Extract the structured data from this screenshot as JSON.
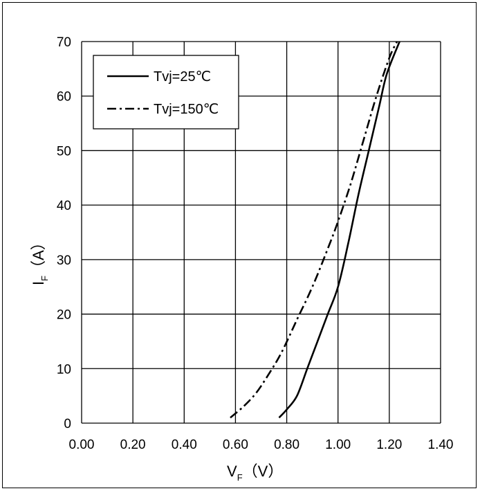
{
  "chart_data": {
    "type": "line",
    "title": "",
    "xlabel": {
      "main": "V",
      "sub": "F",
      "unit": "（V）"
    },
    "ylabel": {
      "main": "I",
      "sub": "F",
      "unit": "（A）"
    },
    "xlim": [
      0.0,
      1.4
    ],
    "ylim": [
      0,
      70
    ],
    "xticks": [
      "0.00",
      "0.20",
      "0.40",
      "0.60",
      "0.80",
      "1.00",
      "1.20",
      "1.40"
    ],
    "yticks": [
      "0",
      "10",
      "20",
      "30",
      "40",
      "50",
      "60",
      "70"
    ],
    "grid": true,
    "legend": {
      "position": "top-left"
    },
    "series": [
      {
        "name": "Tvj=25℃",
        "style": "solid",
        "points": [
          [
            0.77,
            1
          ],
          [
            0.8,
            2.5
          ],
          [
            0.84,
            5
          ],
          [
            0.88,
            10
          ],
          [
            0.92,
            15
          ],
          [
            0.96,
            20
          ],
          [
            1.0,
            25
          ],
          [
            1.04,
            33
          ],
          [
            1.08,
            42
          ],
          [
            1.12,
            50
          ],
          [
            1.16,
            58
          ],
          [
            1.19,
            64
          ],
          [
            1.24,
            70
          ]
        ]
      },
      {
        "name": "Tvj=150℃",
        "style": "dashdot",
        "points": [
          [
            0.58,
            1
          ],
          [
            0.63,
            3
          ],
          [
            0.68,
            5.5
          ],
          [
            0.73,
            9
          ],
          [
            0.78,
            13
          ],
          [
            0.84,
            19
          ],
          [
            0.9,
            25
          ],
          [
            0.96,
            32
          ],
          [
            1.0,
            37
          ],
          [
            1.05,
            44
          ],
          [
            1.1,
            52
          ],
          [
            1.15,
            60
          ],
          [
            1.2,
            67
          ],
          [
            1.23,
            70
          ]
        ]
      }
    ]
  }
}
